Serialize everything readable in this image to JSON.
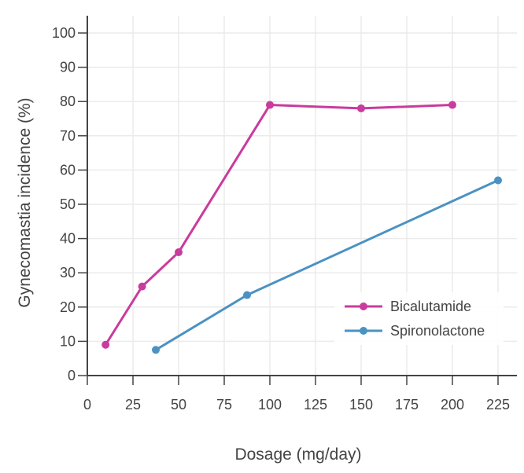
{
  "chart_data": {
    "type": "line",
    "xlabel": "Dosage (mg/day)",
    "ylabel": "Gynecomastia incidence (%)",
    "xlim": [
      0,
      235
    ],
    "ylim": [
      0,
      105
    ],
    "x_ticks": [
      0,
      25,
      50,
      75,
      100,
      125,
      150,
      175,
      200,
      225
    ],
    "y_ticks": [
      0,
      10,
      20,
      30,
      40,
      50,
      60,
      70,
      80,
      90,
      100
    ],
    "grid": true,
    "legend_position": "lower-right",
    "series": [
      {
        "name": "Bicalutamide",
        "color": "#c93b9d",
        "x": [
          10,
          30,
          50,
          100,
          150,
          200
        ],
        "y": [
          9,
          26,
          36,
          79,
          78,
          79
        ]
      },
      {
        "name": "Spironolactone",
        "color": "#4b92c3",
        "x": [
          37.5,
          87.5,
          225
        ],
        "y": [
          7.5,
          23.5,
          57
        ]
      }
    ]
  }
}
